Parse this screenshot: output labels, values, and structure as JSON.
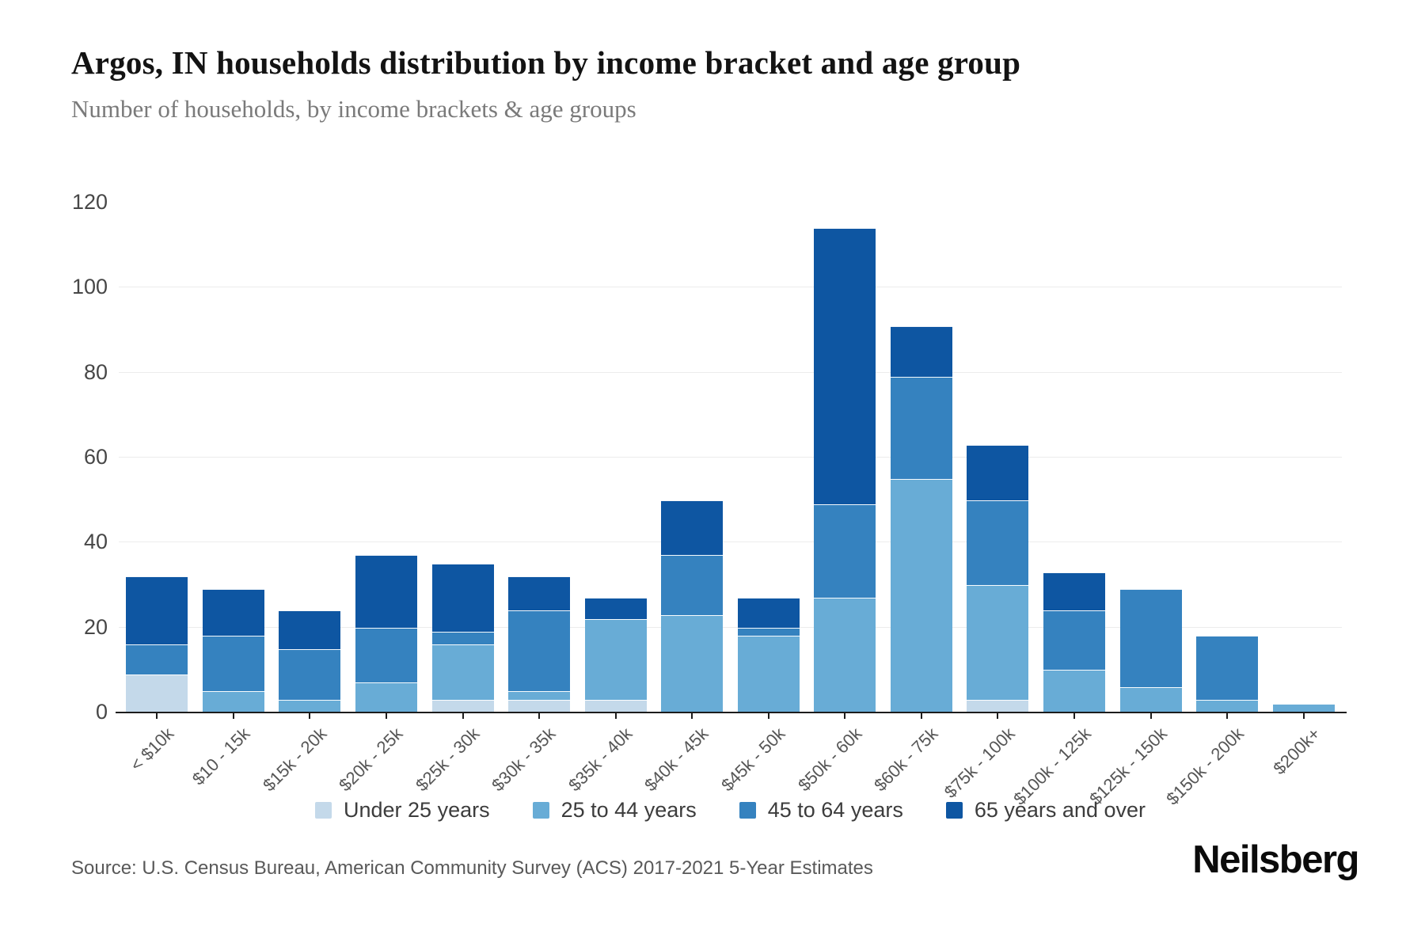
{
  "header": {
    "title": "Argos, IN households distribution by income bracket and age group",
    "subtitle": "Number of households, by income brackets & age groups"
  },
  "footer": {
    "source": "Source: U.S. Census Bureau, American Community Survey (ACS) 2017-2021 5-Year Estimates",
    "brand": "Neilsberg"
  },
  "chart_data": {
    "type": "bar",
    "stacked": true,
    "title": "Argos, IN households distribution by income bracket and age group",
    "subtitle": "Number of households, by income brackets & age groups",
    "xlabel": "",
    "ylabel": "Number of households",
    "ylim": [
      0,
      120
    ],
    "yticks": [
      0,
      20,
      40,
      60,
      80,
      100,
      120
    ],
    "grid": "horizontal",
    "legend_position": "bottom",
    "categories": [
      "< $10k",
      "$10 - 15k",
      "$15k - 20k",
      "$20k - 25k",
      "$25k - 30k",
      "$30k - 35k",
      "$35k - 40k",
      "$40k - 45k",
      "$45k - 50k",
      "$50k - 60k",
      "$60k - 75k",
      "$75k - 100k",
      "$100k - 125k",
      "$125k - 150k",
      "$150k - 200k",
      "$200k+"
    ],
    "series": [
      {
        "name": "Under 25 years",
        "color": "#c4d9ea",
        "values": [
          9,
          0,
          0,
          0,
          3,
          3,
          3,
          0,
          0,
          0,
          0,
          3,
          0,
          0,
          0,
          0
        ]
      },
      {
        "name": "25 to 44 years",
        "color": "#68acd6",
        "values": [
          0,
          5,
          3,
          7,
          13,
          2,
          19,
          23,
          18,
          27,
          55,
          27,
          10,
          6,
          3,
          2
        ]
      },
      {
        "name": "45 to 64 years",
        "color": "#3582bf",
        "values": [
          7,
          13,
          12,
          13,
          3,
          19,
          0,
          14,
          2,
          22,
          24,
          20,
          14,
          23,
          15,
          0
        ]
      },
      {
        "name": "65 years and over",
        "color": "#0e56a2",
        "values": [
          16,
          11,
          9,
          17,
          16,
          8,
          5,
          13,
          7,
          65,
          12,
          13,
          9,
          0,
          0,
          0
        ]
      }
    ],
    "totals": [
      32,
      29,
      24,
      37,
      35,
      32,
      27,
      50,
      27,
      114,
      91,
      63,
      33,
      29,
      18,
      2
    ]
  }
}
